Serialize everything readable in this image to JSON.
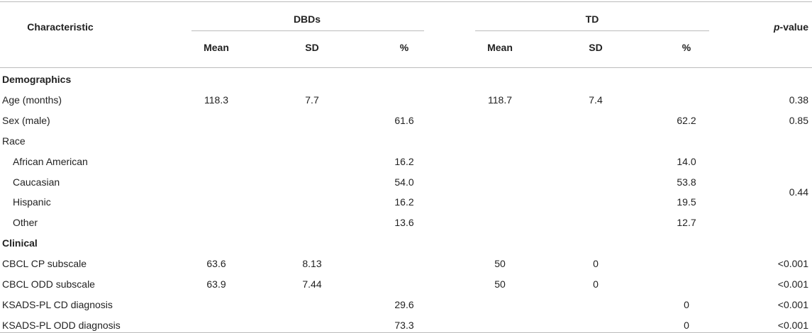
{
  "header": {
    "characteristic": "Characteristic",
    "p_value": {
      "italic": "p",
      "text": "-value"
    },
    "groups": [
      {
        "title": "DBDs",
        "columns": [
          "Mean",
          "SD",
          "%"
        ]
      },
      {
        "title": "TD",
        "columns": [
          "Mean",
          "SD",
          "%"
        ]
      }
    ]
  },
  "sections": [
    {
      "title": "Demographics",
      "rows": [
        {
          "label": "Age (months)",
          "dbd_mean": "118.3",
          "dbd_sd": "7.7",
          "td_mean": "118.7",
          "td_sd": "7.4",
          "p": "0.38"
        },
        {
          "label": "Sex (male)",
          "dbd_pct": "61.6",
          "td_pct": "62.2",
          "p": "0.85"
        },
        {
          "label": "Race",
          "p": "0.44",
          "rows": [
            {
              "label": "African American",
              "dbd_pct": "16.2",
              "td_pct": "14.0"
            },
            {
              "label": "Caucasian",
              "dbd_pct": "54.0",
              "td_pct": "53.8"
            },
            {
              "label": "Hispanic",
              "dbd_pct": "16.2",
              "td_pct": "19.5"
            },
            {
              "label": "Other",
              "dbd_pct": "13.6",
              "td_pct": "12.7"
            }
          ]
        }
      ]
    },
    {
      "title": "Clinical",
      "rows": [
        {
          "label": "CBCL CP subscale",
          "dbd_mean": "63.6",
          "dbd_sd": "8.13",
          "td_mean": "50",
          "td_sd": "0",
          "p": "<0.001"
        },
        {
          "label": "CBCL ODD subscale",
          "dbd_mean": "63.9",
          "dbd_sd": "7.44",
          "td_mean": "50",
          "td_sd": "0",
          "p": "<0.001"
        },
        {
          "label": "KSADS-PL CD diagnosis",
          "dbd_pct": "29.6",
          "td_pct": "0",
          "p": "<0.001"
        },
        {
          "label": "KSADS-PL ODD diagnosis",
          "dbd_pct": "73.3",
          "td_pct": "0",
          "p": "<0.001"
        }
      ]
    }
  ]
}
